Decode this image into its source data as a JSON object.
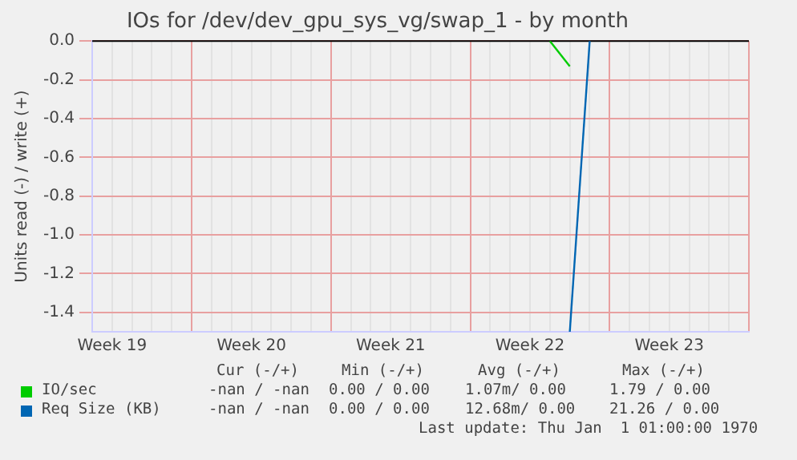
{
  "chart_data": {
    "type": "line",
    "title": "IOs for /dev/dev_gpu_sys_vg/swap_1 - by month",
    "ylabel": "Units read (-) / write (+)",
    "categories": [
      null,
      "Week 19",
      null,
      null,
      null,
      null,
      null,
      null,
      "Week 20",
      null,
      null,
      null,
      null,
      null,
      null,
      "Week 21",
      null,
      null,
      null,
      null,
      null,
      null,
      "Week 22",
      null,
      null,
      null,
      null,
      null,
      null,
      "Week 23",
      null,
      null,
      null,
      null
    ],
    "ylim": [
      -1.5,
      0
    ],
    "yticks": [
      {
        "value": -1.4,
        "label": "-1.4"
      },
      {
        "value": -1.2,
        "label": "-1.2"
      },
      {
        "value": -1.0,
        "label": "-1.0"
      },
      {
        "value": -0.8,
        "label": "-0.8"
      },
      {
        "value": -0.6,
        "label": "-0.6"
      },
      {
        "value": -0.4,
        "label": "-0.4"
      },
      {
        "value": -0.2,
        "label": "-0.2"
      },
      {
        "value": 0,
        "label": "0.0"
      }
    ],
    "series": [
      {
        "name": "IO/sec",
        "color": "#00cc00",
        "values": [
          null,
          null,
          null,
          null,
          null,
          null,
          null,
          null,
          null,
          null,
          null,
          null,
          null,
          null,
          null,
          null,
          null,
          null,
          null,
          null,
          null,
          null,
          null,
          0,
          -0.13,
          null,
          null,
          null,
          null,
          null,
          null,
          null,
          null,
          null
        ]
      },
      {
        "name": "Req Size (KB)",
        "color": "#0066b3",
        "values": [
          null,
          null,
          null,
          null,
          null,
          null,
          null,
          null,
          null,
          null,
          null,
          null,
          null,
          null,
          null,
          null,
          null,
          null,
          null,
          null,
          null,
          null,
          null,
          null,
          -1.5,
          0,
          null,
          null,
          null,
          null,
          null,
          null,
          null,
          null
        ]
      }
    ],
    "grid": true,
    "legend": "bottom",
    "marker": "none",
    "line_style": "solid",
    "annotations": [
      "Cur (-/+)",
      "Min (-/+)",
      "Avg (-/+)",
      "Max (-/+)",
      "-nan / -nan",
      "0.00 / 0.00",
      "1.07m/ 0.00",
      "1.79 / 0.00",
      "-nan / -nan",
      "0.00 / 0.00",
      "12.68m/ 0.00",
      "21.26 / 0.00",
      "Last update: Thu Jan  1 01:00:00 1970"
    ]
  }
}
